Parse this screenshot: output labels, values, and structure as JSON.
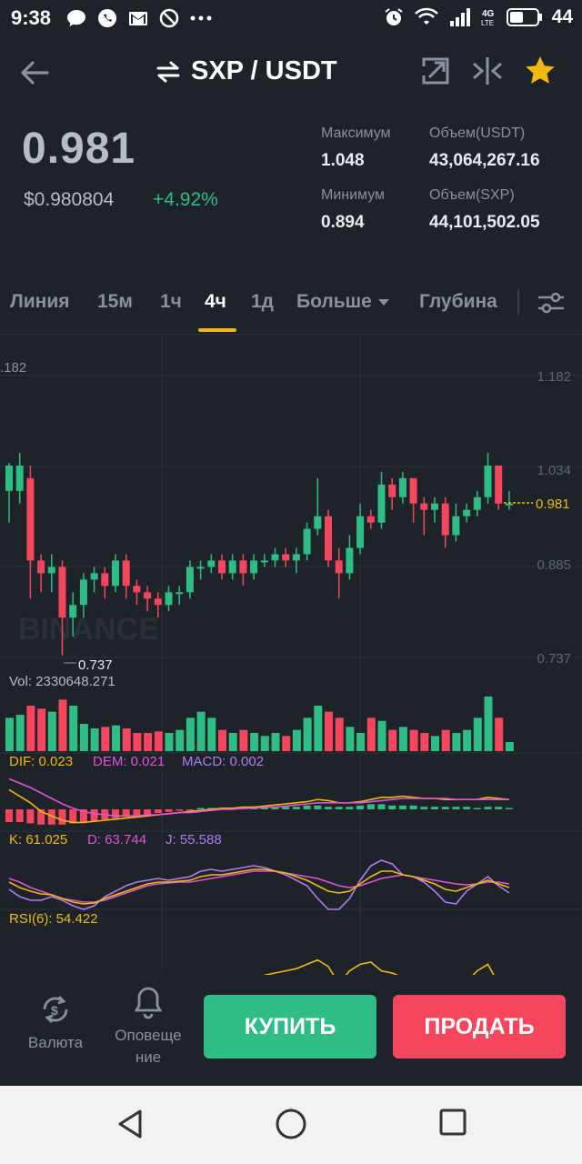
{
  "status_bar": {
    "time": "9:38",
    "battery": "44",
    "network": "4G LTE"
  },
  "header": {
    "title": "SXP / USDT"
  },
  "price": {
    "last": "0.981",
    "usd": "$0.980804",
    "change": "+4.92%",
    "high_label": "Максимум",
    "high_value": "1.048",
    "low_label": "Минимум",
    "low_value": "0.894",
    "vol_usdt_label": "Объем(USDT)",
    "vol_usdt_value": "43,064,267.16",
    "vol_sxp_label": "Объем(SXP)",
    "vol_sxp_value": "44,101,502.05"
  },
  "tabs": [
    {
      "label": "Линия"
    },
    {
      "label": "15м"
    },
    {
      "label": "1ч"
    },
    {
      "label": "4ч",
      "active": true
    },
    {
      "label": "1д"
    },
    {
      "label": "Больше"
    },
    {
      "label": "Глубина"
    }
  ],
  "chart_data": {
    "type": "candlestick",
    "watermark": "BINANCE",
    "y_ticks": [
      "1.182",
      "1.034",
      "0.885",
      "0.737"
    ],
    "left_top_label": ".182",
    "current_price_label": "0.981",
    "min_marker_label": "0.737",
    "volume_label": "Vol: 2330648.271",
    "macd": {
      "dif": "DIF: 0.023",
      "dem": "DEM: 0.021",
      "macd": "MACD: 0.002"
    },
    "kdj": {
      "k": "K: 61.025",
      "d": "D: 63.744",
      "j": "J: 55.588"
    },
    "rsi": {
      "rsi6": "RSI(6): 54.422"
    },
    "colors": {
      "up": "#2ebd85",
      "down": "#f6465d",
      "accent": "#f0b90b",
      "purple": "#b07cf0",
      "pink": "#e052d8"
    },
    "candles": [
      [
        1.0,
        1.04,
        0.99,
        1.044,
        0.95
      ],
      [
        1.0,
        1.04,
        1.02,
        1.06,
        0.98
      ],
      [
        1.02,
        0.89,
        1.04,
        0.83
      ],
      [
        0.89,
        0.87,
        0.9,
        0.84
      ],
      [
        0.87,
        0.88,
        0.9,
        0.84
      ],
      [
        0.88,
        0.8,
        0.89,
        0.74
      ],
      [
        0.8,
        0.82,
        0.84,
        0.77
      ],
      [
        0.82,
        0.86,
        0.87,
        0.8
      ],
      [
        0.86,
        0.87,
        0.88,
        0.84
      ],
      [
        0.87,
        0.85,
        0.88,
        0.83
      ],
      [
        0.85,
        0.89,
        0.9,
        0.84
      ],
      [
        0.89,
        0.85,
        0.9,
        0.83
      ],
      [
        0.85,
        0.84,
        0.86,
        0.82
      ],
      [
        0.84,
        0.83,
        0.85,
        0.81
      ],
      [
        0.83,
        0.82,
        0.84,
        0.8
      ],
      [
        0.82,
        0.84,
        0.85,
        0.81
      ],
      [
        0.84,
        0.84,
        0.85,
        0.82
      ],
      [
        0.84,
        0.88,
        0.89,
        0.83
      ],
      [
        0.88,
        0.88,
        0.89,
        0.86
      ],
      [
        0.88,
        0.89,
        0.9,
        0.87
      ],
      [
        0.89,
        0.87,
        0.9,
        0.86
      ],
      [
        0.87,
        0.89,
        0.9,
        0.86
      ],
      [
        0.89,
        0.87,
        0.9,
        0.85
      ],
      [
        0.87,
        0.89,
        0.9,
        0.86
      ],
      [
        0.89,
        0.89,
        0.9,
        0.88
      ],
      [
        0.89,
        0.9,
        0.91,
        0.88
      ],
      [
        0.9,
        0.89,
        0.91,
        0.88
      ],
      [
        0.89,
        0.9,
        0.91,
        0.87
      ],
      [
        0.9,
        0.94,
        0.95,
        0.89
      ],
      [
        0.94,
        0.96,
        1.02,
        0.93
      ],
      [
        0.96,
        0.89,
        0.97,
        0.88
      ],
      [
        0.89,
        0.87,
        0.91,
        0.83
      ],
      [
        0.87,
        0.91,
        0.93,
        0.86
      ],
      [
        0.91,
        0.96,
        0.98,
        0.9
      ],
      [
        0.96,
        0.95,
        0.97,
        0.94
      ],
      [
        0.95,
        1.01,
        1.03,
        0.94
      ],
      [
        1.01,
        0.99,
        1.02,
        0.97
      ],
      [
        0.99,
        1.02,
        1.03,
        0.98
      ],
      [
        1.02,
        0.98,
        1.02,
        0.95
      ],
      [
        0.98,
        0.97,
        0.99,
        0.93
      ],
      [
        0.97,
        0.98,
        0.99,
        0.95
      ],
      [
        0.98,
        0.93,
        0.99,
        0.91
      ],
      [
        0.93,
        0.96,
        0.98,
        0.92
      ],
      [
        0.96,
        0.97,
        0.98,
        0.95
      ],
      [
        0.97,
        0.99,
        1.0,
        0.96
      ],
      [
        0.99,
        1.04,
        1.06,
        0.98
      ],
      [
        1.04,
        0.98,
        1.04,
        0.97
      ],
      [
        0.98,
        0.98,
        1.0,
        0.97
      ]
    ],
    "volumes": [
      22,
      24,
      30,
      28,
      26,
      34,
      30,
      18,
      15,
      16,
      17,
      15,
      12,
      12,
      13,
      12,
      14,
      22,
      26,
      22,
      14,
      12,
      14,
      12,
      10,
      12,
      10,
      14,
      22,
      30,
      26,
      22,
      16,
      12,
      22,
      20,
      14,
      16,
      14,
      12,
      10,
      14,
      12,
      14,
      22,
      36,
      22,
      6
    ],
    "macd_hist": [
      -10,
      -10,
      -11,
      -12,
      -12,
      -12,
      -11,
      -10,
      -9,
      -8,
      -7,
      -6,
      -5,
      -4,
      -3,
      -2,
      -1,
      -1,
      0,
      1,
      1,
      1,
      1,
      1,
      2,
      2,
      2,
      2,
      3,
      3,
      2,
      2,
      2,
      3,
      4,
      4,
      3,
      3,
      3,
      2,
      2,
      2,
      2,
      2,
      1,
      2,
      2,
      1
    ],
    "dif_line": [
      18,
      12,
      6,
      -2,
      -6,
      -10,
      -12,
      -12,
      -11,
      -10,
      -9,
      -8,
      -7,
      -6,
      -5,
      -4,
      -3,
      -2,
      -1,
      0,
      1,
      1,
      2,
      2,
      3,
      4,
      5,
      6,
      7,
      9,
      8,
      6,
      6,
      7,
      9,
      11,
      11,
      12,
      11,
      10,
      10,
      9,
      9,
      9,
      9,
      11,
      10,
      9
    ],
    "dem_line": [
      28,
      24,
      20,
      15,
      10,
      5,
      1,
      -2,
      -4,
      -5,
      -6,
      -6,
      -6,
      -5,
      -5,
      -4,
      -3,
      -3,
      -2,
      -1,
      0,
      0,
      1,
      1,
      2,
      2,
      3,
      4,
      5,
      6,
      6,
      6,
      6,
      6,
      7,
      8,
      9,
      10,
      10,
      10,
      10,
      10,
      9,
      9,
      9,
      9,
      9,
      9
    ],
    "k_line": [
      58,
      52,
      48,
      45,
      44,
      40,
      36,
      34,
      35,
      40,
      44,
      48,
      52,
      56,
      58,
      58,
      59,
      60,
      64,
      66,
      66,
      68,
      70,
      72,
      72,
      70,
      68,
      64,
      60,
      54,
      48,
      46,
      48,
      56,
      64,
      70,
      70,
      66,
      64,
      60,
      56,
      50,
      48,
      52,
      56,
      60,
      56,
      52
    ],
    "d_line": [
      62,
      58,
      52,
      48,
      44,
      40,
      38,
      36,
      36,
      38,
      42,
      46,
      50,
      54,
      56,
      57,
      58,
      58,
      60,
      62,
      64,
      66,
      68,
      70,
      70,
      70,
      68,
      66,
      64,
      62,
      58,
      54,
      52,
      54,
      58,
      62,
      64,
      66,
      64,
      62,
      60,
      58,
      56,
      55,
      56,
      58,
      58,
      56
    ],
    "j_line": [
      50,
      42,
      38,
      38,
      42,
      38,
      32,
      28,
      32,
      42,
      48,
      54,
      58,
      60,
      62,
      60,
      62,
      64,
      70,
      72,
      70,
      72,
      74,
      76,
      74,
      70,
      66,
      60,
      54,
      40,
      28,
      28,
      40,
      60,
      76,
      82,
      78,
      66,
      64,
      58,
      48,
      36,
      34,
      48,
      56,
      64,
      54,
      46
    ],
    "rsi_line": [
      28,
      34,
      30,
      26,
      30,
      24,
      36,
      38,
      30,
      28,
      32,
      30,
      30,
      30,
      34,
      32,
      30,
      38,
      42,
      40,
      36,
      44,
      42,
      46,
      48,
      50,
      52,
      54,
      58,
      62,
      56,
      40,
      52,
      58,
      60,
      52,
      50,
      46,
      40,
      30,
      36,
      40,
      38,
      42,
      52,
      58,
      40,
      46
    ]
  },
  "bottom_bar": {
    "currency_label": "Валюта",
    "alerts_label_1": "Оповеще",
    "alerts_label_2": "ние",
    "buy_label": "КУПИТЬ",
    "sell_label": "ПРОДАТЬ"
  }
}
